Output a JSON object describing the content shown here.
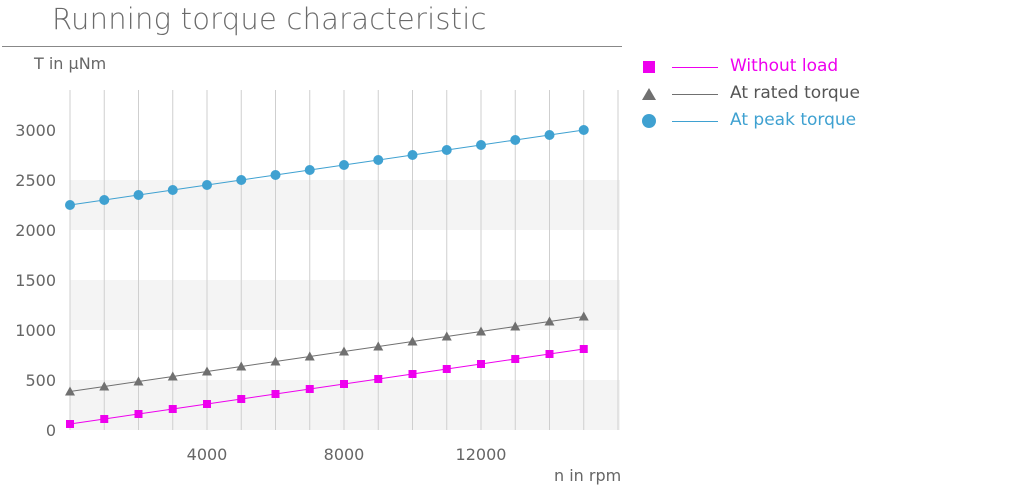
{
  "header": {
    "title": "Running torque characteristic"
  },
  "chart_data": {
    "type": "line",
    "title": "Running torque characteristic",
    "xlabel": "n in rpm",
    "ylabel": "T in µNm",
    "xlim": [
      0,
      16000
    ],
    "ylim": [
      0,
      3400
    ],
    "x_ticks": [
      4000,
      8000,
      12000
    ],
    "y_ticks": [
      0,
      500,
      1000,
      1500,
      2000,
      2500,
      3000
    ],
    "grid": "vertical lines every 1000 rpm, alternating horizontal bands",
    "legend_position": "right",
    "x": [
      0,
      1000,
      2000,
      3000,
      4000,
      5000,
      6000,
      7000,
      8000,
      9000,
      10000,
      11000,
      12000,
      13000,
      14000,
      15000
    ],
    "series": [
      {
        "name": "Without load",
        "color": "#ee00ee",
        "marker": "square",
        "values": [
          60,
          110,
          160,
          210,
          260,
          310,
          360,
          410,
          460,
          510,
          560,
          610,
          660,
          710,
          760,
          810
        ]
      },
      {
        "name": "At rated torque",
        "color": "#707070",
        "marker": "triangle",
        "values": [
          385,
          435,
          485,
          535,
          585,
          635,
          685,
          735,
          785,
          835,
          885,
          935,
          985,
          1035,
          1085,
          1135
        ]
      },
      {
        "name": "At peak torque",
        "color": "#3fa1d1",
        "marker": "circle",
        "values": [
          2250,
          2300,
          2350,
          2400,
          2450,
          2500,
          2550,
          2600,
          2650,
          2700,
          2750,
          2800,
          2850,
          2900,
          2950,
          3000
        ]
      }
    ]
  }
}
